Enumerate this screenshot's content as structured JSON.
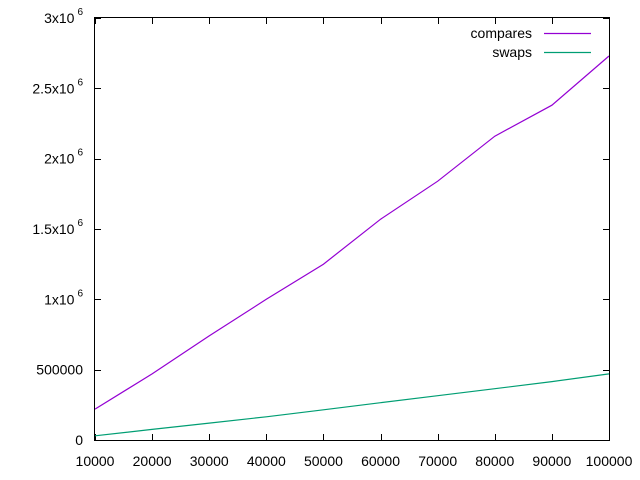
{
  "chart_data": {
    "type": "line",
    "title": "",
    "xlabel": "",
    "ylabel": "",
    "xlim": [
      10000,
      100000
    ],
    "ylim": [
      0,
      3000000
    ],
    "grid": false,
    "legend_position": "top-right",
    "x_ticks": [
      {
        "value": 10000,
        "label": "10000"
      },
      {
        "value": 20000,
        "label": "20000"
      },
      {
        "value": 30000,
        "label": "30000"
      },
      {
        "value": 40000,
        "label": "40000"
      },
      {
        "value": 50000,
        "label": "50000"
      },
      {
        "value": 60000,
        "label": "60000"
      },
      {
        "value": 70000,
        "label": "70000"
      },
      {
        "value": 80000,
        "label": "80000"
      },
      {
        "value": 90000,
        "label": "90000"
      },
      {
        "value": 100000,
        "label": "100000"
      }
    ],
    "y_ticks": [
      {
        "value": 0,
        "label": "0",
        "sup": ""
      },
      {
        "value": 500000,
        "label": "500000",
        "sup": ""
      },
      {
        "value": 1000000,
        "label": "1x10",
        "sup": "6"
      },
      {
        "value": 1500000,
        "label": "1.5x10",
        "sup": "6"
      },
      {
        "value": 2000000,
        "label": "2x10",
        "sup": "6"
      },
      {
        "value": 2500000,
        "label": "2.5x10",
        "sup": "6"
      },
      {
        "value": 3000000,
        "label": "3x10",
        "sup": "6"
      }
    ],
    "x": [
      10000,
      20000,
      30000,
      40000,
      50000,
      60000,
      70000,
      80000,
      90000,
      100000
    ],
    "series": [
      {
        "name": "compares",
        "color": "#9400d3",
        "values": [
          220000,
          470000,
          740000,
          1000000,
          1250000,
          1570000,
          1840000,
          2160000,
          2380000,
          2730000
        ]
      },
      {
        "name": "swaps",
        "color": "#009e73",
        "values": [
          30000,
          75000,
          120000,
          165000,
          215000,
          265000,
          315000,
          365000,
          415000,
          470000
        ]
      }
    ]
  }
}
